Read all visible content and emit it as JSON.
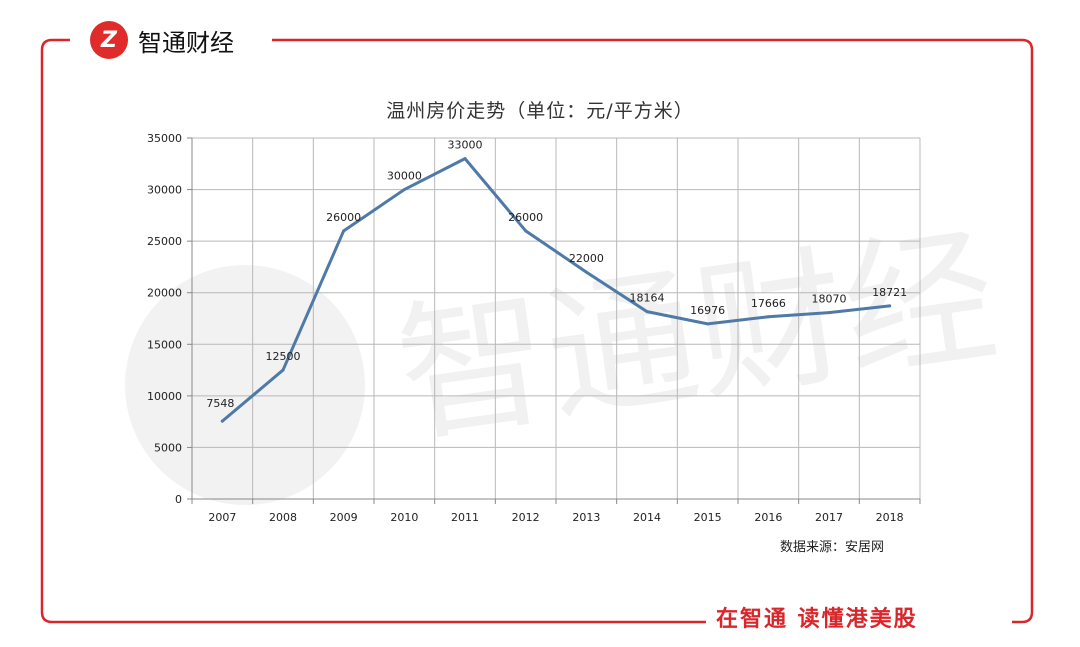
{
  "brand": {
    "logo_letter": "Z",
    "name": "智通财经"
  },
  "slogan": "在智通 读懂港美股",
  "watermark": "智通财经",
  "source_note": "数据来源：安居网",
  "colors": {
    "accent": "#d9262b",
    "line": "#4f7aa8",
    "grid": "#b8b8b8"
  },
  "chart_data": {
    "type": "line",
    "title": "温州房价走势（单位：元/平方米）",
    "xlabel": "",
    "ylabel": "",
    "categories": [
      "2007",
      "2008",
      "2009",
      "2010",
      "2011",
      "2012",
      "2013",
      "2014",
      "2015",
      "2016",
      "2017",
      "2018"
    ],
    "series": [
      {
        "values": [
          7548,
          12500,
          26000,
          30000,
          33000,
          26000,
          22000,
          18164,
          16976,
          17666,
          18070,
          18721
        ]
      }
    ],
    "data_labels": [
      "7548",
      "12500",
      "26000",
      "30000",
      "33000",
      "26000",
      "22000",
      "18164",
      "16976",
      "17666",
      "18070",
      "18721"
    ],
    "ylim": [
      0,
      35000
    ],
    "yticks": [
      "0",
      "5000",
      "10000",
      "15000",
      "20000",
      "25000",
      "30000",
      "35000"
    ],
    "grid": true,
    "legend": "none"
  }
}
